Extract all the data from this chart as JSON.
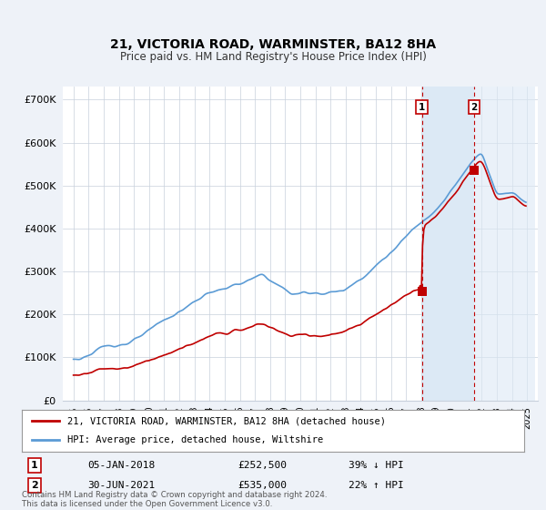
{
  "title1": "21, VICTORIA ROAD, WARMINSTER, BA12 8HA",
  "title2": "Price paid vs. HM Land Registry's House Price Index (HPI)",
  "ylim": [
    0,
    730000
  ],
  "yticks": [
    0,
    100000,
    200000,
    300000,
    400000,
    500000,
    600000,
    700000
  ],
  "ytick_labels": [
    "£0",
    "£100K",
    "£200K",
    "£300K",
    "£400K",
    "£500K",
    "£600K",
    "£700K"
  ],
  "hpi_color": "#5b9bd5",
  "price_color": "#c00000",
  "shade_color": "#dce9f5",
  "legend_label_price": "21, VICTORIA ROAD, WARMINSTER, BA12 8HA (detached house)",
  "legend_label_hpi": "HPI: Average price, detached house, Wiltshire",
  "sale1_year": 2018.04,
  "sale1_price": 252500,
  "sale2_year": 2021.5,
  "sale2_price": 535000,
  "footnote": "Contains HM Land Registry data © Crown copyright and database right 2024.\nThis data is licensed under the Open Government Licence v3.0.",
  "table_row1": [
    "1",
    "05-JAN-2018",
    "£252,500",
    "39% ↓ HPI"
  ],
  "table_row2": [
    "2",
    "30-JUN-2021",
    "£535,000",
    "22% ↑ HPI"
  ],
  "background_color": "#eef2f8",
  "plot_bg_color": "#ffffff",
  "grid_color": "#c8d0dc"
}
